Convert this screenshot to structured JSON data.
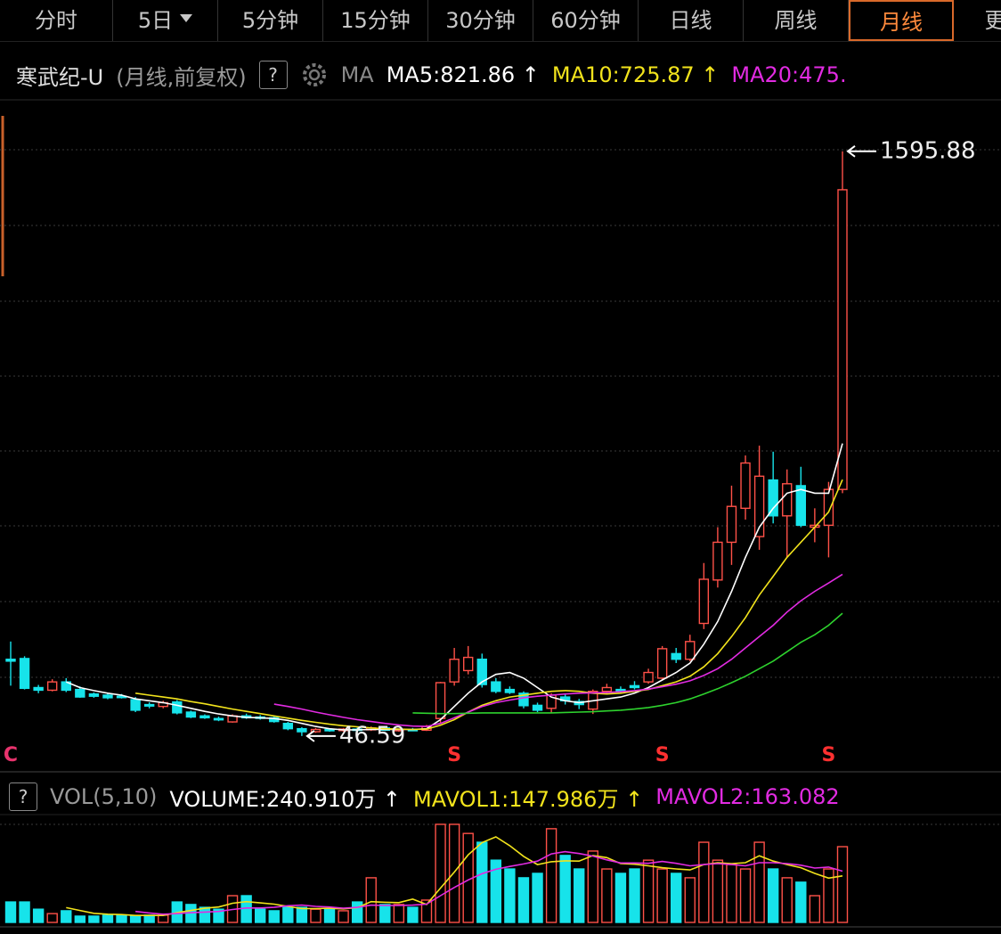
{
  "toolbar": {
    "tabs": [
      "分时",
      "5日",
      "5分钟",
      "15分钟",
      "30分钟",
      "60分钟",
      "日线",
      "周线",
      "月线",
      "更多"
    ],
    "active_tab": "月线",
    "dropdown_tab": "5日"
  },
  "chart_data": [
    {
      "type": "candlestick",
      "title": "寒武纪-U",
      "subtitle": "(月线,前复权)",
      "help": "?",
      "indicator": "MA",
      "up_color": "#ff5148",
      "down_color": "#17e3ea",
      "ylim": [
        -34,
        1737
      ],
      "open": [
        250,
        252,
        175,
        168,
        190,
        170,
        158,
        155,
        152,
        143,
        130,
        125,
        137,
        110,
        100,
        93,
        84,
        100,
        97,
        95,
        80,
        66,
        58,
        64,
        61,
        65,
        63,
        68,
        62,
        64,
        62,
        93,
        190,
        220,
        250,
        190,
        170,
        160,
        128,
        120,
        150,
        138,
        118,
        165,
        170,
        180,
        190,
        200,
        265,
        250,
        345,
        460,
        560,
        650,
        575,
        725,
        630,
        710,
        600,
        605,
        700
      ],
      "high": [
        297,
        258,
        182,
        197,
        200,
        178,
        162,
        160,
        158,
        150,
        136,
        140,
        142,
        114,
        104,
        98,
        104,
        106,
        102,
        98,
        84,
        70,
        68,
        67,
        68,
        69,
        72,
        70,
        66,
        68,
        76,
        190,
        280,
        285,
        265,
        200,
        178,
        165,
        135,
        160,
        158,
        145,
        170,
        185,
        178,
        192,
        225,
        285,
        280,
        315,
        505,
        600,
        710,
        790,
        816,
        800,
        753,
        760,
        650,
        720,
        1595.88
      ],
      "low": [
        180,
        170,
        160,
        165,
        163,
        148,
        148,
        144,
        146,
        110,
        120,
        120,
        104,
        94,
        92,
        86,
        82,
        92,
        90,
        82,
        62,
        46.59,
        55,
        58,
        58,
        60,
        60,
        60,
        58,
        60,
        60,
        80,
        180,
        210,
        175,
        160,
        158,
        120,
        110,
        108,
        130,
        118,
        105,
        160,
        160,
        170,
        185,
        195,
        240,
        245,
        330,
        440,
        500,
        620,
        540,
        610,
        520,
        600,
        560,
        520,
        690
      ],
      "close": [
        245,
        173,
        168,
        190,
        168,
        150,
        152,
        148,
        150,
        115,
        126,
        135,
        108,
        97,
        95,
        90,
        100,
        95,
        94,
        85,
        66,
        58,
        64,
        61,
        65,
        63,
        68,
        62,
        64,
        62,
        72,
        188,
        250,
        255,
        183,
        165,
        162,
        127,
        115,
        155,
        140,
        130,
        165,
        175,
        168,
        175,
        215,
        278,
        250,
        297,
        462,
        560,
        655,
        770,
        735,
        630,
        715,
        605,
        605,
        700,
        1494
      ],
      "signals": [
        "C",
        null,
        null,
        null,
        null,
        null,
        null,
        null,
        null,
        null,
        null,
        null,
        null,
        null,
        null,
        null,
        null,
        null,
        null,
        null,
        null,
        null,
        null,
        null,
        null,
        null,
        null,
        null,
        null,
        null,
        null,
        null,
        "S",
        null,
        null,
        null,
        null,
        null,
        null,
        null,
        null,
        null,
        null,
        null,
        null,
        null,
        null,
        "S",
        null,
        null,
        null,
        null,
        null,
        null,
        null,
        null,
        null,
        null,
        null,
        "S",
        null
      ],
      "signal_colors": {
        "C": "#e8336d",
        "S": "#ff3030"
      },
      "series": [
        {
          "name": "MA5:821.86 ↑",
          "color": "#ffffff",
          "values": [
            null,
            null,
            null,
            null,
            190,
            175,
            167,
            160,
            155,
            145,
            140,
            135,
            128,
            120,
            112,
            105,
            100,
            96,
            95,
            93,
            88,
            80,
            72,
            66,
            63,
            63,
            64,
            64,
            64,
            64,
            66,
            90,
            125,
            160,
            190,
            210,
            215,
            200,
            175,
            150,
            140,
            135,
            140,
            145,
            150,
            160,
            175,
            195,
            215,
            240,
            290,
            350,
            430,
            520,
            600,
            650,
            690,
            700,
            690,
            690,
            821.86
          ]
        },
        {
          "name": "MA10:725.87 ↑",
          "color": "#f2e31c",
          "values": [
            null,
            null,
            null,
            null,
            null,
            null,
            null,
            null,
            null,
            160,
            155,
            150,
            145,
            138,
            132,
            125,
            118,
            112,
            106,
            100,
            94,
            88,
            83,
            78,
            74,
            71,
            68,
            66,
            65,
            64,
            65,
            75,
            90,
            110,
            128,
            140,
            150,
            155,
            160,
            165,
            167,
            165,
            160,
            158,
            160,
            165,
            170,
            180,
            190,
            205,
            230,
            265,
            310,
            360,
            420,
            470,
            520,
            560,
            600,
            640,
            725.87
          ]
        },
        {
          "name": "MA20:475.",
          "color": "#e22be2",
          "values": [
            null,
            null,
            null,
            null,
            null,
            null,
            null,
            null,
            null,
            null,
            null,
            null,
            null,
            null,
            null,
            null,
            null,
            null,
            null,
            131,
            125,
            118,
            110,
            103,
            96,
            90,
            85,
            80,
            76,
            73,
            72,
            80,
            95,
            110,
            125,
            135,
            142,
            148,
            152,
            155,
            158,
            160,
            161,
            162,
            164,
            167,
            171,
            177,
            184,
            193,
            207,
            225,
            250,
            280,
            310,
            340,
            375,
            405,
            430,
            452,
            475
          ]
        },
        {
          "color": "#2ed22e",
          "values": [
            null,
            null,
            null,
            null,
            null,
            null,
            null,
            null,
            null,
            null,
            null,
            null,
            null,
            null,
            null,
            null,
            null,
            null,
            null,
            null,
            null,
            null,
            null,
            null,
            null,
            null,
            null,
            null,
            null,
            108,
            107,
            106,
            106,
            107,
            108,
            108,
            108,
            108,
            108,
            108,
            109,
            110,
            111,
            113,
            115,
            118,
            122,
            128,
            135,
            145,
            158,
            172,
            188,
            205,
            225,
            245,
            270,
            295,
            315,
            340,
            372
          ]
        }
      ]
    },
    {
      "type": "bar",
      "help": "?",
      "title": "VOL(5,10)",
      "ylim": [
        0,
        326
      ],
      "series": [
        {
          "name": "VOLUME:240.910万 ↑",
          "color": "#ffffff",
          "values": [
            65,
            65,
            42,
            28,
            37,
            20,
            20,
            23,
            23,
            20,
            23,
            23,
            65,
            57,
            48,
            42,
            85,
            85,
            42,
            37,
            48,
            48,
            42,
            42,
            37,
            65,
            142,
            57,
            57,
            48,
            71,
            312,
            312,
            283,
            255,
            198,
            170,
            142,
            156,
            298,
            213,
            170,
            227,
            170,
            156,
            170,
            198,
            170,
            156,
            142,
            255,
            198,
            184,
            170,
            255,
            170,
            142,
            128,
            85,
            170,
            240.91
          ]
        },
        {
          "name": "MAVOL1:147.986万 ↑",
          "color": "#f2e31c",
          "values": [
            null,
            null,
            null,
            null,
            47,
            38,
            29,
            26,
            25,
            22,
            22,
            22,
            31,
            38,
            45,
            49,
            61,
            66,
            62,
            58,
            51,
            44,
            44,
            45,
            43,
            47,
            66,
            64,
            63,
            74,
            57,
            109,
            160,
            215,
            254,
            272,
            244,
            210,
            184,
            193,
            196,
            195,
            213,
            206,
            187,
            185,
            180,
            174,
            170,
            167,
            184,
            190,
            187,
            190,
            212,
            195,
            184,
            174,
            156,
            141,
            147.986
          ]
        },
        {
          "name": "MAVOL2:163.082",
          "color": "#e22be2",
          "values": [
            null,
            null,
            null,
            null,
            null,
            null,
            null,
            null,
            null,
            35,
            30,
            26,
            28,
            31,
            33,
            35,
            41,
            46,
            46,
            48,
            53,
            55,
            51,
            49,
            45,
            48,
            55,
            54,
            54,
            55,
            58,
            85,
            111,
            135,
            155,
            169,
            178,
            186,
            195,
            218,
            225,
            219,
            211,
            199,
            189,
            189,
            188,
            194,
            188,
            180,
            184,
            187,
            184,
            180,
            190,
            190,
            187,
            182,
            173,
            176,
            163.082
          ]
        }
      ]
    }
  ]
}
